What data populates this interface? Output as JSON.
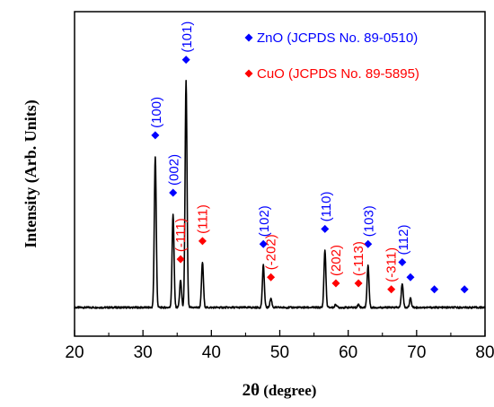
{
  "chart_data": {
    "type": "line",
    "title": "",
    "xlabel": "2θ (degree)",
    "xlabel_parts": {
      "symbol": "2θ",
      "unit": " (degree)"
    },
    "ylabel": "Intensity (Arb. Units)",
    "xlim": [
      20,
      80
    ],
    "x_ticks": [
      20,
      30,
      40,
      50,
      60,
      70,
      80
    ],
    "y_ticks_shown": false,
    "grid": false,
    "legend_position": "top-right",
    "colors": {
      "ZnO": "#0000ff",
      "CuO": "#ff0000",
      "pattern": "#000000"
    },
    "legend": [
      {
        "name": "ZnO (JCPDS No. 89-0510)",
        "color": "#0000ff",
        "marker": "diamond"
      },
      {
        "name": "CuO (JCPDS No. 89-5895)",
        "color": "#ff0000",
        "marker": "diamond"
      }
    ],
    "series": [
      {
        "name": "XRD pattern",
        "baseline": 5,
        "peaks": [
          {
            "x": 31.8,
            "y": 55
          },
          {
            "x": 34.4,
            "y": 36
          },
          {
            "x": 35.5,
            "y": 14
          },
          {
            "x": 36.3,
            "y": 80
          },
          {
            "x": 38.7,
            "y": 20
          },
          {
            "x": 47.6,
            "y": 19
          },
          {
            "x": 48.7,
            "y": 8
          },
          {
            "x": 56.6,
            "y": 24
          },
          {
            "x": 58.2,
            "y": 6
          },
          {
            "x": 61.5,
            "y": 6
          },
          {
            "x": 62.9,
            "y": 19
          },
          {
            "x": 66.3,
            "y": 5
          },
          {
            "x": 67.9,
            "y": 13
          },
          {
            "x": 69.1,
            "y": 8
          },
          {
            "x": 72.6,
            "y": 5
          },
          {
            "x": 77.0,
            "y": 5
          }
        ]
      }
    ],
    "markers": [
      {
        "phase": "ZnO",
        "x": 31.8,
        "y": 62,
        "label": "(100)"
      },
      {
        "phase": "ZnO",
        "x": 34.4,
        "y": 43,
        "label": "(002)"
      },
      {
        "phase": "ZnO",
        "x": 36.3,
        "y": 87,
        "label": "(101)"
      },
      {
        "phase": "ZnO",
        "x": 47.6,
        "y": 26,
        "label": "(102)"
      },
      {
        "phase": "ZnO",
        "x": 56.6,
        "y": 31,
        "label": "(110)"
      },
      {
        "phase": "ZnO",
        "x": 62.9,
        "y": 26,
        "label": "(103)"
      },
      {
        "phase": "ZnO",
        "x": 67.9,
        "y": 20,
        "label": "(112)"
      },
      {
        "phase": "ZnO",
        "x": 69.1,
        "y": 15,
        "label": ""
      },
      {
        "phase": "ZnO",
        "x": 72.6,
        "y": 11,
        "label": ""
      },
      {
        "phase": "ZnO",
        "x": 77.0,
        "y": 11,
        "label": ""
      },
      {
        "phase": "CuO",
        "x": 35.5,
        "y": 21,
        "label": "(-111)"
      },
      {
        "phase": "CuO",
        "x": 38.7,
        "y": 27,
        "label": "(111)"
      },
      {
        "phase": "CuO",
        "x": 48.7,
        "y": 15,
        "label": "(-202)"
      },
      {
        "phase": "CuO",
        "x": 58.2,
        "y": 13,
        "label": "(202)"
      },
      {
        "phase": "CuO",
        "x": 61.5,
        "y": 13,
        "label": "(-113)"
      },
      {
        "phase": "CuO",
        "x": 66.3,
        "y": 11,
        "label": "(-311)"
      }
    ]
  }
}
